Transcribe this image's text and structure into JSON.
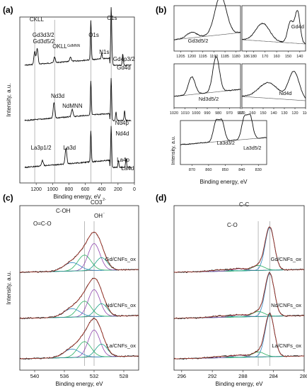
{
  "chart_data": [
    {
      "panel": "(a)",
      "type": "line",
      "xlabel": "Binding energy, eV",
      "ylabel": "Intensity, a.u.",
      "xlim": [
        1400,
        0
      ],
      "xticks": [
        1200,
        1000,
        800,
        600,
        400,
        200,
        0
      ],
      "series": [
        {
          "name": "Gd",
          "peaks": [
            {
              "label": "CKLL",
              "x": 1225
            },
            {
              "label": "Gd3d3/2",
              "x": 1218
            },
            {
              "label": "Gd3d5/2",
              "x": 1187
            },
            {
              "label": "OKLL",
              "x": 975
            },
            {
              "label": "GdMNN",
              "x": 780
            },
            {
              "label": "O1s",
              "x": 532
            },
            {
              "label": "C1s",
              "x": 284
            },
            {
              "label": "N1s",
              "x": 400
            },
            {
              "label": "Gd4p3/2",
              "x": 272
            },
            {
              "label": "Gd4d",
              "x": 142
            }
          ]
        },
        {
          "name": "Nd",
          "peaks": [
            {
              "label": "Nd3d",
              "x": 982
            },
            {
              "label": "NdMNN",
              "x": 760
            },
            {
              "label": "Nd4p",
              "x": 225
            },
            {
              "label": "Nd4d",
              "x": 120
            }
          ]
        },
        {
          "name": "La",
          "peaks": [
            {
              "label": "La3p1/2",
              "x": 1124
            },
            {
              "label": "La3d",
              "x": 836
            },
            {
              "label": "La4p",
              "x": 195
            },
            {
              "label": "La4d",
              "x": 102
            }
          ]
        }
      ],
      "vertical_lines": [
        1218,
        975,
        532,
        284
      ]
    },
    {
      "panel": "(b)",
      "type": "line",
      "subplots": [
        {
          "label": "Gd3d5/2",
          "xlim": [
            1208,
            1178
          ],
          "xticks": [
            1205,
            1200,
            1195,
            1190,
            1185,
            1180
          ],
          "peaks": [
            1187,
            1200
          ]
        },
        {
          "label": "Gd4d",
          "xlim": [
            190,
            135
          ],
          "xticks": [
            186,
            180,
            170,
            160,
            150,
            140
          ],
          "peaks": [
            142,
            148,
            172
          ]
        },
        {
          "label": "Nd3d5/2",
          "xlim": [
            1020,
            960
          ],
          "xticks": [
            1020,
            1010,
            1000,
            990,
            980,
            970,
            960
          ],
          "peaks": [
            982,
            1004
          ]
        },
        {
          "label": "Nd4d",
          "xlim": [
            170,
            110
          ],
          "xticks": [
            170,
            160,
            150,
            140,
            130,
            120,
            110
          ],
          "peaks": [
            121,
            145
          ]
        },
        {
          "label_a": "La3d3/2",
          "label_b": "La3d5/2",
          "xlim": [
            877,
            825
          ],
          "xticks": [
            870,
            860,
            850,
            840,
            830
          ],
          "peaks": [
            852,
            855.5,
            835,
            838.5
          ]
        }
      ],
      "xlabel": "Binding energy, eV",
      "ylabel": "Intensity, a.u."
    },
    {
      "panel": "(c)",
      "type": "line",
      "xlabel": "Binding energy, eV",
      "ylabel": "Intensity, a.u.",
      "xlim": [
        542,
        526
      ],
      "xticks": [
        540,
        536,
        532,
        528
      ],
      "annotations": [
        "O=C-O",
        "C-OH",
        "CO3",
        "2-",
        "OH",
        "-"
      ],
      "components_eV": [
        535.0,
        533.3,
        532.0,
        531.0
      ],
      "series": [
        {
          "name": "Gd/CNFs_ox"
        },
        {
          "name": "Nd/CNFs_ox"
        },
        {
          "name": "La/CNFs_ox"
        }
      ]
    },
    {
      "panel": "(d)",
      "type": "line",
      "xlabel": "Binding energy, eV",
      "ylabel": "",
      "xlim": [
        297,
        280
      ],
      "xticks": [
        296,
        292,
        288,
        284,
        280
      ],
      "annotations": [
        "C-C",
        "C-O"
      ],
      "components_eV": [
        284.5,
        286.0,
        288.5,
        291.0
      ],
      "series": [
        {
          "name": "Gd/CNFs_ox"
        },
        {
          "name": "Nd/CNFs_ox"
        },
        {
          "name": "La/CNFs_ox"
        }
      ]
    }
  ],
  "colors": {
    "fit": "#c0392b",
    "comp1": "#2e86c1",
    "comp2": "#27ae60",
    "comp3": "#8e44ad",
    "comp4": "#16a085"
  }
}
